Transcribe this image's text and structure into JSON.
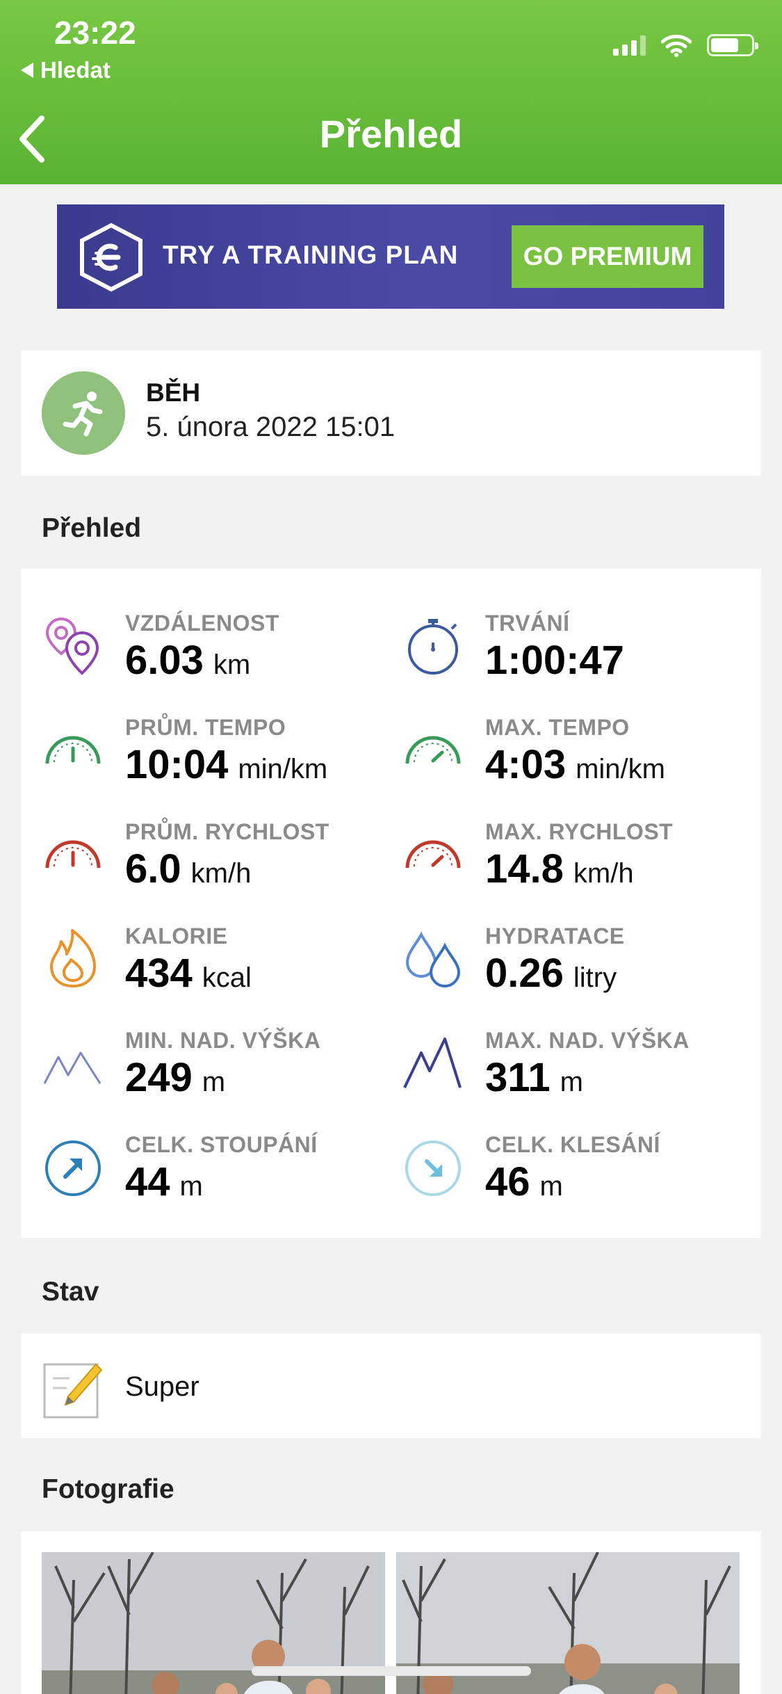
{
  "status_bar": {
    "time": "23:22",
    "back_app_label": "Hledat"
  },
  "header": {
    "title": "Přehled"
  },
  "promo": {
    "text": "TRY A TRAINING PLAN",
    "button_label": "GO PREMIUM"
  },
  "activity": {
    "type": "BĚH",
    "date": "5. února 2022 15:01"
  },
  "sections": {
    "overview": "Přehled",
    "status": "Stav",
    "photos": "Fotografie"
  },
  "stats": [
    {
      "label": "VZDÁLENOST",
      "value": "6.03",
      "unit": "km",
      "icon": "location-pins-icon"
    },
    {
      "label": "TRVÁNÍ",
      "value": "1:00:47",
      "unit": "",
      "icon": "stopwatch-icon"
    },
    {
      "label": "PRŮM. TEMPO",
      "value": "10:04",
      "unit": "min/km",
      "icon": "pace-gauge-icon"
    },
    {
      "label": "MAX. TEMPO",
      "value": "4:03",
      "unit": "min/km",
      "icon": "max-pace-gauge-icon"
    },
    {
      "label": "PRŮM. RYCHLOST",
      "value": "6.0",
      "unit": "km/h",
      "icon": "speed-gauge-icon"
    },
    {
      "label": "MAX. RYCHLOST",
      "value": "14.8",
      "unit": "km/h",
      "icon": "max-speed-gauge-icon"
    },
    {
      "label": "KALORIE",
      "value": "434",
      "unit": "kcal",
      "icon": "flame-icon"
    },
    {
      "label": "HYDRATACE",
      "value": "0.26",
      "unit": "litry",
      "icon": "water-drops-icon"
    },
    {
      "label": "MIN. NAD. VÝŠKA",
      "value": "249",
      "unit": "m",
      "icon": "min-elevation-icon"
    },
    {
      "label": "MAX. NAD. VÝŠKA",
      "value": "311",
      "unit": "m",
      "icon": "max-elevation-icon"
    },
    {
      "label": "CELK. STOUPÁNÍ",
      "value": "44",
      "unit": "m",
      "icon": "ascent-arrow-icon"
    },
    {
      "label": "CELK. KLESÁNÍ",
      "value": "46",
      "unit": "m",
      "icon": "descent-arrow-icon"
    }
  ],
  "note": {
    "text": "Super"
  },
  "colors": {
    "header_green": "#6bbf3b",
    "premium_green": "#7cc242",
    "promo_purple": "#43439c",
    "avatar_green": "#8fc07c"
  }
}
